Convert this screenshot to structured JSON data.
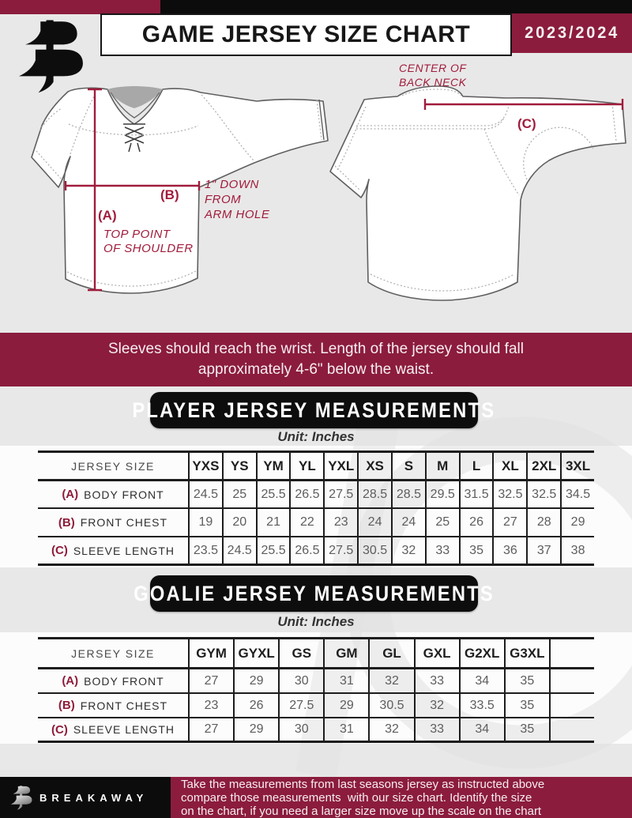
{
  "header": {
    "title": "GAME JERSEY SIZE CHART",
    "season": "2023/2024"
  },
  "diagram": {
    "front": {
      "label_a": "(A)",
      "a_note_line1": "TOP POINT",
      "a_note_line2": "OF SHOULDER",
      "label_b": "(B)",
      "b_note_line1": "1\" DOWN",
      "b_note_line2": "FROM",
      "b_note_line3": "ARM HOLE"
    },
    "back": {
      "label_c": "(C)",
      "c_note_line1": "CENTER OF",
      "c_note_line2": "BACK NECK"
    }
  },
  "banner": {
    "line1": "Sleeves should reach the wrist. Length of the jersey should fall",
    "line2": "approximately 4-6\" below the waist."
  },
  "player_section": {
    "title": "PLAYER JERSEY MEASUREMENTS",
    "unit": "Unit: Inches"
  },
  "goalie_section": {
    "title": "GOALIE JERSEY MEASUREMENTS",
    "unit": "Unit: Inches"
  },
  "player_table": {
    "label_header": "JERSEY SIZE",
    "columns": [
      "YXS",
      "YS",
      "YM",
      "YL",
      "YXL",
      "XS",
      "S",
      "M",
      "L",
      "XL",
      "2XL",
      "3XL"
    ],
    "rows": [
      {
        "key": "(A)",
        "label": "BODY FRONT",
        "values": [
          "24.5",
          "25",
          "25.5",
          "26.5",
          "27.5",
          "28.5",
          "28.5",
          "29.5",
          "31.5",
          "32.5",
          "32.5",
          "34.5"
        ]
      },
      {
        "key": "(B)",
        "label": "FRONT CHEST",
        "values": [
          "19",
          "20",
          "21",
          "22",
          "23",
          "24",
          "24",
          "25",
          "26",
          "27",
          "28",
          "29"
        ]
      },
      {
        "key": "(C)",
        "label": "SLEEVE LENGTH",
        "values": [
          "23.5",
          "24.5",
          "25.5",
          "26.5",
          "27.5",
          "30.5",
          "32",
          "33",
          "35",
          "36",
          "37",
          "38"
        ]
      }
    ]
  },
  "goalie_table": {
    "label_header": "JERSEY SIZE",
    "columns": [
      "GYM",
      "GYXL",
      "GS",
      "GM",
      "GL",
      "GXL",
      "G2XL",
      "G3XL",
      ""
    ],
    "rows": [
      {
        "key": "(A)",
        "label": "BODY FRONT",
        "values": [
          "27",
          "29",
          "30",
          "31",
          "32",
          "33",
          "34",
          "35",
          ""
        ]
      },
      {
        "key": "(B)",
        "label": "FRONT CHEST",
        "values": [
          "23",
          "26",
          "27.5",
          "29",
          "30.5",
          "32",
          "33.5",
          "35",
          ""
        ]
      },
      {
        "key": "(C)",
        "label": "SLEEVE LENGTH",
        "values": [
          "27",
          "29",
          "30",
          "31",
          "32",
          "33",
          "34",
          "35",
          ""
        ]
      }
    ]
  },
  "footer": {
    "brand": "BREAKAWAY",
    "line1": "Take the measurements from last seasons jersey as instructed above",
    "line2": "compare those measurements  with our size chart. Identify the size",
    "line3": "on the chart, if you need a larger size move up the scale on the chart"
  },
  "colors": {
    "maroon": "#8b1c3d",
    "annotation_red": "#a01c3c",
    "background_gray": "#e9e8e8",
    "table_line": "#1d1d1d"
  }
}
